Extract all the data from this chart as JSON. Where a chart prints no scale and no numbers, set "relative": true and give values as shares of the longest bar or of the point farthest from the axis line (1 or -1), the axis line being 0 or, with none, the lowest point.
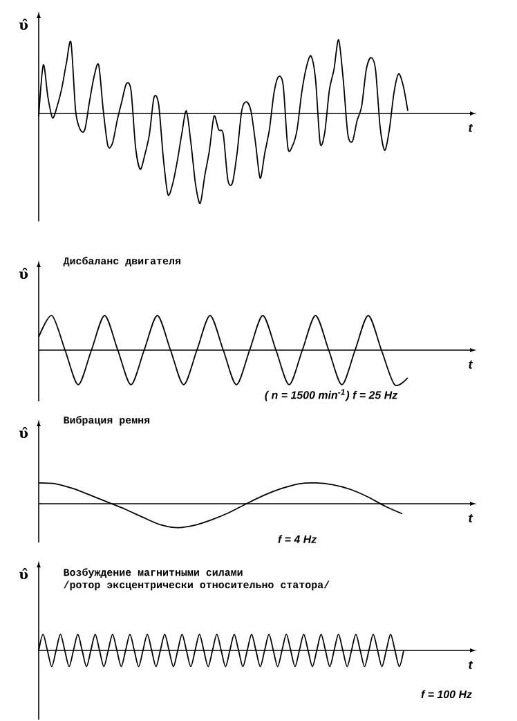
{
  "chart_data": [
    {
      "type": "line",
      "xlabel": "t",
      "ylabel": "υ̂",
      "relative": true,
      "color": "#000000",
      "categories": [
        null,
        null,
        null,
        null,
        null,
        null,
        null,
        null,
        null,
        null,
        null,
        null,
        null,
        null,
        null,
        null,
        null,
        null,
        null,
        null,
        null,
        null,
        null,
        null,
        null,
        null,
        null,
        null,
        null,
        null,
        null,
        null,
        null,
        null,
        null,
        null,
        null,
        null,
        null,
        null,
        null,
        null,
        null,
        null,
        null,
        null,
        null,
        null,
        null,
        null,
        null,
        null,
        null,
        null,
        null,
        null,
        null,
        null,
        null,
        null,
        null,
        null,
        null,
        null,
        null,
        null,
        null,
        null,
        null,
        null,
        null,
        null,
        null,
        null,
        null,
        null,
        null,
        null,
        null,
        null,
        null
      ],
      "values": [
        -0.03,
        0.54,
        0.18,
        -0.05,
        0.08,
        0.28,
        0.56,
        0.79,
        0.03,
        -0.18,
        -0.18,
        0.13,
        0.41,
        0.54,
        0.03,
        -0.36,
        -0.33,
        -0.08,
        0.13,
        0.33,
        0.26,
        -0.38,
        -0.62,
        -0.46,
        -0.23,
        0.18,
        0.1,
        -0.49,
        -0.9,
        -0.79,
        -0.54,
        -0.23,
        0.03,
        -0.33,
        -0.79,
        -1,
        -0.69,
        -0.41,
        -0.03,
        -0.18,
        -0.23,
        -0.74,
        -0.77,
        -0.44,
        0.03,
        0.13,
        0.03,
        -0.33,
        -0.72,
        -0.44,
        -0.18,
        0.23,
        0.41,
        0.31,
        -0.38,
        -0.36,
        -0.18,
        0.23,
        0.51,
        0.64,
        0.38,
        -0.33,
        -0.21,
        0.26,
        0.49,
        0.82,
        0.38,
        -0.23,
        -0.31,
        -0.08,
        0.08,
        0.49,
        0.62,
        0.49,
        -0.15,
        -0.41,
        -0.18,
        0.23,
        0.44,
        0.31,
        0.03
      ]
    },
    {
      "type": "line",
      "title": "Дисбаланс двигателя",
      "xlabel": "t",
      "ylabel": "υ̂",
      "relative": true,
      "color": "#000000",
      "categories": [
        null,
        null,
        null,
        null,
        null,
        null,
        null,
        null,
        null,
        null,
        null,
        null,
        null,
        null,
        null,
        null,
        null,
        null,
        null,
        null,
        null,
        null,
        null,
        null,
        null,
        null,
        null,
        null,
        null
      ],
      "values": [
        0.38,
        1,
        0,
        -1,
        0,
        1,
        0,
        -1,
        0,
        1,
        0,
        -1,
        0,
        1,
        0,
        -1,
        0,
        1,
        0,
        -1,
        0,
        1,
        0,
        -1,
        0,
        1,
        0,
        -1,
        -0.8
      ],
      "annotations": [
        "( n = 1500 min$^{-1}$) f = 25 Hz"
      ]
    },
    {
      "type": "line",
      "title": "Вибрация ремня",
      "xlabel": "t",
      "ylabel": "υ̂",
      "relative": true,
      "color": "#000000",
      "categories": [
        null,
        null,
        null,
        null,
        null,
        null,
        null,
        null,
        null,
        null,
        null,
        null,
        null,
        null,
        null,
        null,
        null,
        null,
        null,
        null,
        null,
        null
      ],
      "values": [
        0.87,
        0.83,
        0.63,
        0.35,
        0.06,
        -0.23,
        -0.56,
        -0.87,
        -1,
        -0.9,
        -0.67,
        -0.37,
        0,
        0.35,
        0.63,
        0.83,
        0.87,
        0.79,
        0.6,
        0.29,
        -0.1,
        -0.42
      ],
      "annotations": [
        "f = 4 Hz"
      ]
    },
    {
      "type": "line",
      "title": "Возбуждение магнитными силами",
      "subtitle": "/ротор эксцентрически относительно статора/",
      "xlabel": "t",
      "ylabel": "υ̂",
      "relative": true,
      "color": "#000000",
      "categories": [
        null,
        null,
        null,
        null,
        null,
        null,
        null,
        null,
        null,
        null,
        null,
        null,
        null,
        null,
        null,
        null,
        null,
        null,
        null,
        null,
        null,
        null,
        null,
        null,
        null,
        null,
        null,
        null,
        null,
        null,
        null,
        null,
        null,
        null,
        null,
        null,
        null,
        null,
        null,
        null,
        null,
        null,
        null,
        null,
        null,
        null,
        null,
        null,
        null,
        null,
        null,
        null,
        null,
        null,
        null,
        null,
        null,
        null,
        null,
        null,
        null,
        null,
        null,
        null,
        null,
        null,
        null,
        null,
        null,
        null,
        null,
        null,
        null,
        null,
        null,
        null,
        null,
        null,
        null,
        null,
        null,
        null,
        null,
        null,
        null
      ],
      "values": [
        0,
        1,
        0,
        -1,
        0,
        1,
        0,
        -1,
        0,
        1,
        0,
        -1,
        0,
        1,
        0,
        -1,
        0,
        1,
        0,
        -1,
        0,
        1,
        0,
        -1,
        0,
        1,
        0,
        -1,
        0,
        1,
        0,
        -1,
        0,
        1,
        0,
        -1,
        0,
        1,
        0,
        -1,
        0,
        1,
        0,
        -1,
        0,
        1,
        0,
        -1,
        0,
        1,
        0,
        -1,
        0,
        1,
        0,
        -1,
        0,
        1,
        0,
        -1,
        0,
        1,
        0,
        -1,
        0,
        1,
        0,
        -1,
        0,
        1,
        0,
        -1,
        0,
        1,
        0,
        -1,
        0,
        1,
        0,
        -1,
        0,
        1,
        0,
        -1,
        0
      ],
      "annotations": [
        "f = 100 Hz"
      ]
    }
  ]
}
